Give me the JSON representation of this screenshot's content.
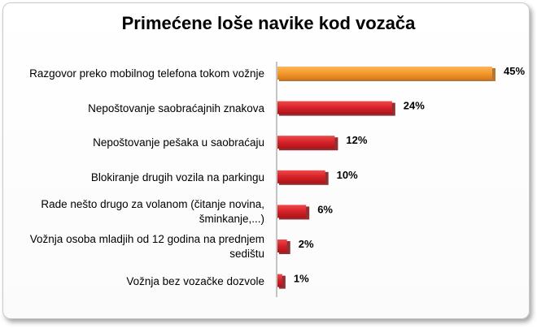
{
  "chart_data": {
    "type": "bar",
    "orientation": "horizontal",
    "title": "Primećene loše navike kod vozača",
    "xlabel": "",
    "ylabel": "",
    "xlim": [
      0,
      45
    ],
    "grid": false,
    "legend": "none",
    "value_suffix": "%",
    "categories": [
      "Razgovor preko mobilnog telefona tokom vožnje",
      "Nepoštovanje saobraćajnih znakova",
      "Nepoštovanje pešaka u saobraćaju",
      "Blokiranje drugih vozila na parkingu",
      "Rade nešto drugo za volanom (čitanje novina, šminkanje,...)",
      "Vožnja osoba mladjih  od 12 godina na prednjem sedištu",
      "Vožnja bez vozačke dozvole"
    ],
    "values": [
      45,
      24,
      12,
      10,
      6,
      2,
      1
    ],
    "value_labels": [
      "45%",
      "24%",
      "12%",
      "10%",
      "6%",
      "2%",
      "1%"
    ],
    "colors": {
      "highlight": "#f39a2c",
      "default": "#d52228"
    }
  }
}
